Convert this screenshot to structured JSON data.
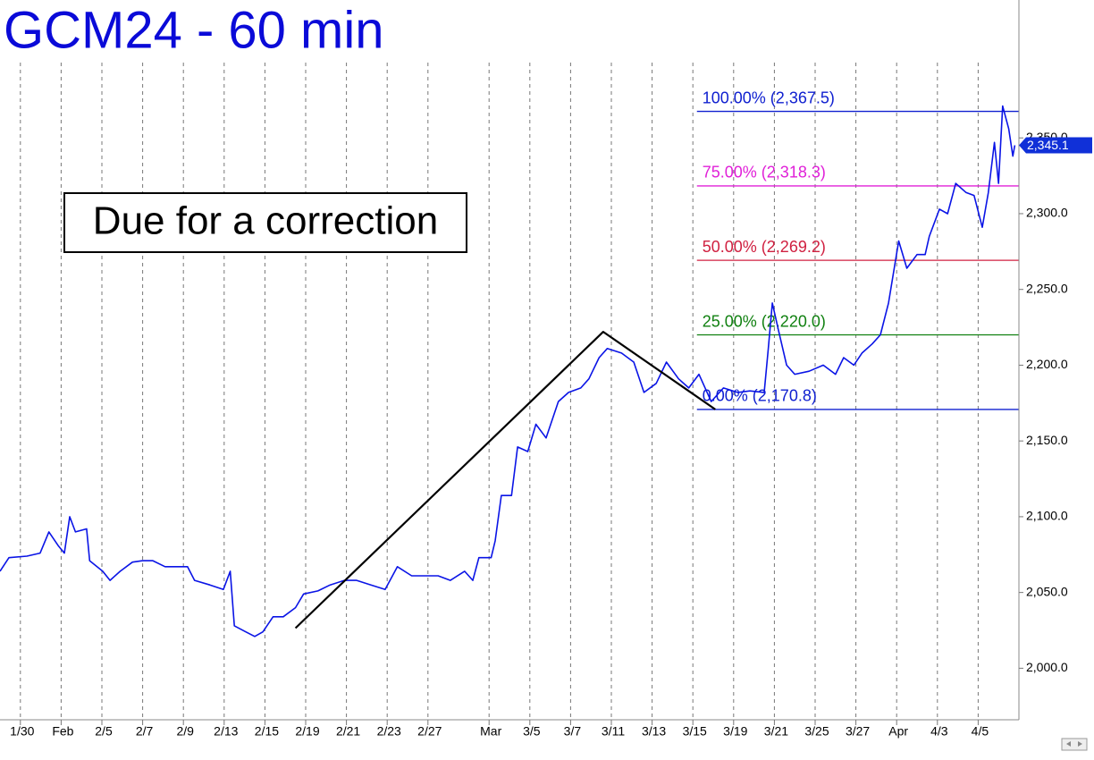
{
  "chart_data": {
    "type": "line",
    "title": "GCM24 - 60 min",
    "annotation": "Due for a correction",
    "xlim": [
      -1,
      49
    ],
    "xticks": [
      {
        "value": 0,
        "label": "1/30"
      },
      {
        "value": 2,
        "label": "Feb"
      },
      {
        "value": 4,
        "label": "2/5"
      },
      {
        "value": 6,
        "label": "2/7"
      },
      {
        "value": 8,
        "label": "2/9"
      },
      {
        "value": 10,
        "label": "2/13"
      },
      {
        "value": 12,
        "label": "2/15"
      },
      {
        "value": 14,
        "label": "2/19"
      },
      {
        "value": 16,
        "label": "2/21"
      },
      {
        "value": 18,
        "label": "2/23"
      },
      {
        "value": 20,
        "label": "2/27"
      },
      {
        "value": 23,
        "label": "Mar"
      },
      {
        "value": 25,
        "label": "3/5"
      },
      {
        "value": 27,
        "label": "3/7"
      },
      {
        "value": 29,
        "label": "3/11"
      },
      {
        "value": 31,
        "label": "3/13"
      },
      {
        "value": 33,
        "label": "3/15"
      },
      {
        "value": 35,
        "label": "3/19"
      },
      {
        "value": 37,
        "label": "3/21"
      },
      {
        "value": 39,
        "label": "3/25"
      },
      {
        "value": 41,
        "label": "3/27"
      },
      {
        "value": 43,
        "label": "Apr"
      },
      {
        "value": 45,
        "label": "4/3"
      },
      {
        "value": 47,
        "label": "4/5"
      }
    ],
    "ylim": [
      1966,
      2441
    ],
    "yticks": [
      {
        "value": 2000,
        "label": "2,000.0"
      },
      {
        "value": 2050,
        "label": "2,050.0"
      },
      {
        "value": 2100,
        "label": "2,100.0"
      },
      {
        "value": 2150,
        "label": "2,150.0"
      },
      {
        "value": 2200,
        "label": "2,200.0"
      },
      {
        "value": 2250,
        "label": "2,250.0"
      },
      {
        "value": 2300,
        "label": "2,300.0"
      },
      {
        "value": 2350,
        "label": "2,350.0"
      }
    ],
    "grid": true,
    "series": [
      {
        "color": "#0a14e6",
        "x": [
          -1,
          -0.56,
          0.32,
          0.97,
          1.4,
          1.85,
          2.16,
          2.42,
          2.7,
          3.25,
          3.4,
          4.04,
          4.4,
          4.9,
          5.5,
          6.0,
          6.5,
          7.1,
          7.55,
          8.2,
          8.55,
          9.3,
          9.96,
          10.3,
          10.5,
          11.06,
          11.5,
          11.9,
          12.4,
          12.9,
          13.5,
          13.9,
          14.6,
          15.2,
          15.9,
          16.5,
          17.2,
          17.9,
          18.5,
          19.2,
          19.8,
          20.5,
          21.1,
          21.8,
          22.2,
          22.5,
          23.1,
          23.3,
          23.6,
          24.1,
          24.4,
          24.9,
          25.3,
          25.8,
          26.4,
          26.9,
          27.5,
          27.9,
          28.4,
          28.8,
          29.5,
          30.1,
          30.6,
          31.2,
          31.7,
          32.3,
          32.8,
          33.3,
          33.9,
          34.5,
          35.2,
          35.8,
          36.5,
          36.7,
          36.9,
          37.2,
          37.6,
          38.0,
          38.7,
          39.4,
          40.0,
          40.4,
          40.9,
          41.3,
          41.8,
          42.2,
          42.6,
          43.1,
          43.5,
          44.0,
          44.4,
          44.6,
          45.1,
          45.5,
          45.9,
          46.4,
          46.8,
          47.2,
          47.5,
          47.8,
          48.0,
          48.2,
          48.5,
          48.7,
          48.8
        ],
        "values": [
          2064,
          2073,
          2074,
          2076,
          2090,
          2081,
          2076,
          2100,
          2090,
          2092,
          2071,
          2064,
          2058,
          2064,
          2070,
          2071,
          2071,
          2067,
          2067,
          2067,
          2058,
          2055,
          2052,
          2064,
          2028,
          2024,
          2021,
          2024,
          2034,
          2034,
          2040,
          2049,
          2051,
          2055,
          2058,
          2058,
          2055,
          2052,
          2067,
          2061,
          2061,
          2061,
          2058,
          2064,
          2058,
          2073,
          2073,
          2084,
          2114,
          2114,
          2146,
          2143,
          2161,
          2152,
          2176,
          2182,
          2185,
          2191,
          2205,
          2211,
          2208,
          2202,
          2182,
          2188,
          2202,
          2191,
          2185,
          2194,
          2176,
          2185,
          2182,
          2183,
          2182,
          2211,
          2241,
          2223,
          2200,
          2194,
          2196,
          2200,
          2194,
          2205,
          2200,
          2208,
          2214,
          2220,
          2241,
          2282,
          2264,
          2273,
          2273,
          2285,
          2303,
          2300,
          2320,
          2314,
          2312,
          2291,
          2314,
          2347,
          2320,
          2371,
          2356,
          2338,
          2345.1
        ]
      }
    ],
    "last_price": {
      "value": 2345.1,
      "label": "2,345.1"
    },
    "levels_from_x": 33.2,
    "levels": [
      {
        "label": "100.00% (2,367.5)",
        "value": 2367.5,
        "color": "#1020d0"
      },
      {
        "label": "75.00% (2,318.3)",
        "value": 2318.3,
        "color": "#e020d8"
      },
      {
        "label": "50.00% (2,269.2)",
        "value": 2269.2,
        "color": "#d02040"
      },
      {
        "label": "25.00% (2,220.0)",
        "value": 2220.0,
        "color": "#108010"
      },
      {
        "label": "0.00% (2,170.8)",
        "value": 2170.8,
        "color": "#1020d0"
      }
    ],
    "trendline": {
      "x": [
        13.5,
        28.6,
        34.1
      ],
      "values": [
        2026.5,
        2222,
        2170.8
      ],
      "color": "#000000"
    }
  }
}
